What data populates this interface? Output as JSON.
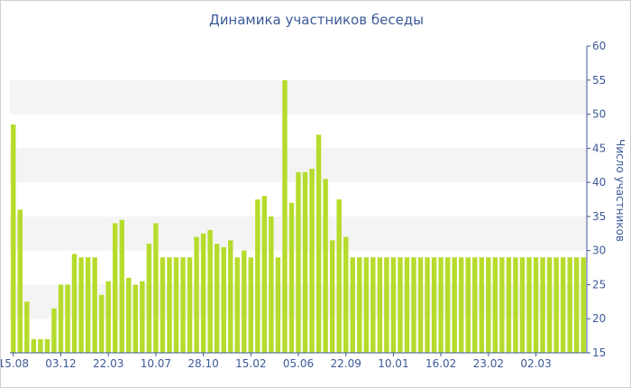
{
  "chart_data": {
    "type": "bar",
    "title": "Динамика участников беседы",
    "ylabel": "Число участников",
    "xlabel": "",
    "ylim": [
      15,
      60
    ],
    "y_ticks": [
      15,
      20,
      25,
      30,
      35,
      40,
      45,
      50,
      55,
      60
    ],
    "y_axis_position": "right",
    "grid": "alternating horizontal bands",
    "bar_color": "#b5dc2c",
    "axis_color": "#3c5a98",
    "band_color": "#f4f4f4",
    "x_tick_labels": [
      {
        "label": "15.08",
        "index": 0
      },
      {
        "label": "03.12",
        "index": 7
      },
      {
        "label": "22.03",
        "index": 14
      },
      {
        "label": "10.07",
        "index": 21
      },
      {
        "label": "28.10",
        "index": 28
      },
      {
        "label": "15.02",
        "index": 35
      },
      {
        "label": "05.06",
        "index": 42
      },
      {
        "label": "22.09",
        "index": 49
      },
      {
        "label": "10.01",
        "index": 56
      },
      {
        "label": "16.02",
        "index": 63
      },
      {
        "label": "23.02",
        "index": 70
      },
      {
        "label": "02.03",
        "index": 77
      }
    ],
    "values": [
      48.5,
      36,
      22.5,
      17,
      17,
      17,
      21.5,
      25,
      25,
      29.5,
      29,
      29,
      29,
      23.5,
      25.5,
      34,
      34.5,
      26,
      25,
      25.5,
      31,
      34,
      29,
      29,
      29,
      29,
      29,
      32,
      32.5,
      33,
      31,
      30.5,
      31.5,
      29,
      30,
      29,
      37.5,
      38,
      35,
      29,
      55,
      37,
      41.5,
      41.5,
      42,
      47,
      40.5,
      31.5,
      37.5,
      32,
      29,
      29,
      29,
      29,
      29,
      29,
      29,
      29,
      29,
      29,
      29,
      29,
      29,
      29,
      29,
      29,
      29,
      29,
      29,
      29,
      29,
      29,
      29,
      29,
      29,
      29,
      29,
      29,
      29,
      29,
      29,
      29,
      29,
      29,
      29
    ]
  }
}
